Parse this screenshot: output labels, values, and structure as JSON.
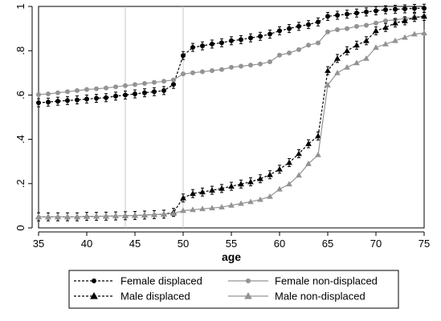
{
  "chart_data": {
    "type": "line",
    "title": "",
    "xlabel": "age",
    "ylabel": "",
    "xlim": [
      35,
      75
    ],
    "ylim": [
      0,
      1
    ],
    "x_ticks": [
      35,
      40,
      45,
      50,
      55,
      60,
      65,
      70,
      75
    ],
    "y_ticks": [
      0,
      0.2,
      0.4,
      0.6,
      0.8,
      1
    ],
    "y_tick_labels": [
      "0",
      ".2",
      ".4",
      ".6",
      ".8",
      "1"
    ],
    "vertical_lines": [
      44,
      50
    ],
    "grid": false,
    "legend_position": "bottom",
    "x": [
      35,
      36,
      37,
      38,
      39,
      40,
      41,
      42,
      43,
      44,
      45,
      46,
      47,
      48,
      49,
      50,
      51,
      52,
      53,
      54,
      55,
      56,
      57,
      58,
      59,
      60,
      61,
      62,
      63,
      64,
      65,
      66,
      67,
      68,
      69,
      70,
      71,
      72,
      73,
      74,
      75
    ],
    "series": [
      {
        "name": "Female displaced",
        "color": "#000000",
        "line_style": "dashed",
        "marker": "circle",
        "values": [
          0.565,
          0.568,
          0.572,
          0.575,
          0.578,
          0.582,
          0.585,
          0.588,
          0.595,
          0.6,
          0.605,
          0.61,
          0.615,
          0.62,
          0.648,
          0.778,
          0.815,
          0.822,
          0.83,
          0.836,
          0.845,
          0.85,
          0.858,
          0.865,
          0.875,
          0.89,
          0.9,
          0.91,
          0.918,
          0.93,
          0.955,
          0.96,
          0.965,
          0.97,
          0.975,
          0.98,
          0.985,
          0.987,
          0.989,
          0.991,
          0.992
        ],
        "error_bars": true
      },
      {
        "name": "Female non-displaced",
        "color": "#939393",
        "line_style": "solid",
        "marker": "circle",
        "values": [
          0.602,
          0.605,
          0.61,
          0.615,
          0.62,
          0.625,
          0.628,
          0.632,
          0.637,
          0.642,
          0.647,
          0.652,
          0.657,
          0.662,
          0.668,
          0.695,
          0.7,
          0.705,
          0.71,
          0.715,
          0.725,
          0.73,
          0.735,
          0.74,
          0.75,
          0.78,
          0.79,
          0.805,
          0.825,
          0.835,
          0.885,
          0.895,
          0.9,
          0.91,
          0.915,
          0.925,
          0.935,
          0.94,
          0.945,
          0.95,
          0.955
        ]
      },
      {
        "name": "Male displaced",
        "color": "#000000",
        "line_style": "dashed",
        "marker": "triangle",
        "values": [
          0.05,
          0.05,
          0.05,
          0.05,
          0.05,
          0.052,
          0.052,
          0.053,
          0.054,
          0.055,
          0.056,
          0.058,
          0.06,
          0.062,
          0.07,
          0.135,
          0.155,
          0.162,
          0.17,
          0.178,
          0.188,
          0.198,
          0.208,
          0.222,
          0.24,
          0.265,
          0.295,
          0.335,
          0.38,
          0.415,
          0.71,
          0.765,
          0.8,
          0.825,
          0.845,
          0.89,
          0.905,
          0.925,
          0.935,
          0.95,
          0.955
        ],
        "error_bars": true
      },
      {
        "name": "Male non-displaced",
        "color": "#939393",
        "line_style": "solid",
        "marker": "triangle",
        "values": [
          0.05,
          0.05,
          0.05,
          0.05,
          0.05,
          0.051,
          0.052,
          0.053,
          0.054,
          0.055,
          0.056,
          0.058,
          0.06,
          0.062,
          0.065,
          0.078,
          0.082,
          0.086,
          0.09,
          0.094,
          0.102,
          0.11,
          0.118,
          0.128,
          0.142,
          0.175,
          0.198,
          0.238,
          0.29,
          0.33,
          0.645,
          0.7,
          0.725,
          0.745,
          0.765,
          0.815,
          0.83,
          0.845,
          0.86,
          0.875,
          0.88
        ]
      }
    ],
    "legend": [
      {
        "label": "Female displaced"
      },
      {
        "label": "Female non-displaced"
      },
      {
        "label": "Male displaced"
      },
      {
        "label": "Male non-displaced"
      }
    ]
  }
}
